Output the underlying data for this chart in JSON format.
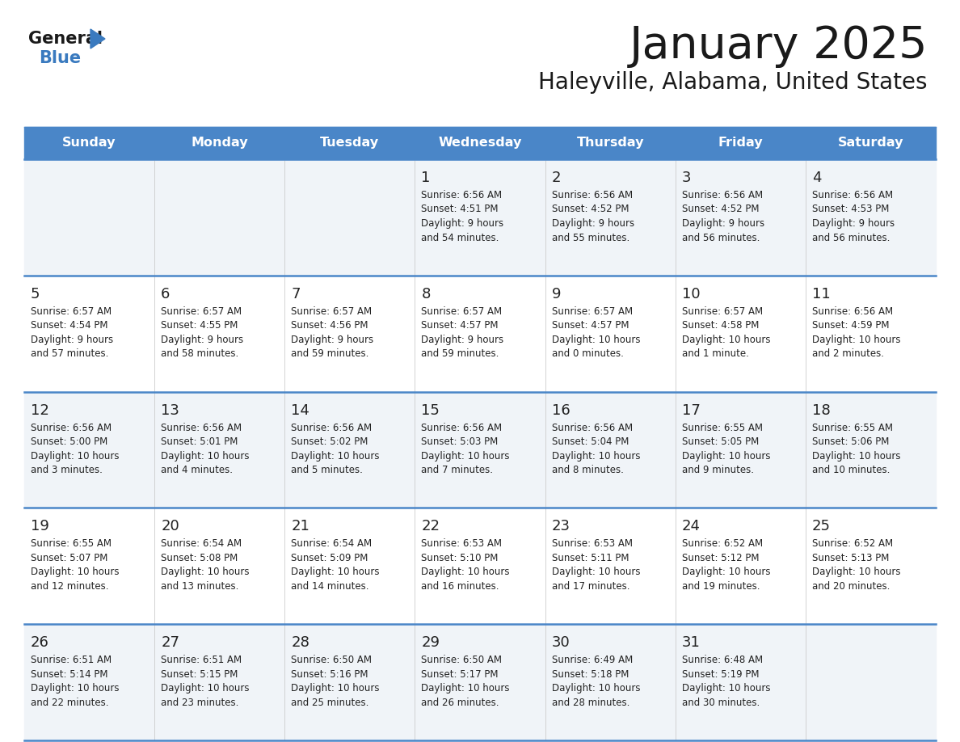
{
  "title": "January 2025",
  "subtitle": "Haleyville, Alabama, United States",
  "header_bg_color": "#4a86c8",
  "header_text_color": "#ffffff",
  "row_line_color": "#4a86c8",
  "text_color": "#222222",
  "days_of_week": [
    "Sunday",
    "Monday",
    "Tuesday",
    "Wednesday",
    "Thursday",
    "Friday",
    "Saturday"
  ],
  "calendar_data": [
    [
      {
        "day": null,
        "info": null
      },
      {
        "day": null,
        "info": null
      },
      {
        "day": null,
        "info": null
      },
      {
        "day": 1,
        "info": "Sunrise: 6:56 AM\nSunset: 4:51 PM\nDaylight: 9 hours\nand 54 minutes."
      },
      {
        "day": 2,
        "info": "Sunrise: 6:56 AM\nSunset: 4:52 PM\nDaylight: 9 hours\nand 55 minutes."
      },
      {
        "day": 3,
        "info": "Sunrise: 6:56 AM\nSunset: 4:52 PM\nDaylight: 9 hours\nand 56 minutes."
      },
      {
        "day": 4,
        "info": "Sunrise: 6:56 AM\nSunset: 4:53 PM\nDaylight: 9 hours\nand 56 minutes."
      }
    ],
    [
      {
        "day": 5,
        "info": "Sunrise: 6:57 AM\nSunset: 4:54 PM\nDaylight: 9 hours\nand 57 minutes."
      },
      {
        "day": 6,
        "info": "Sunrise: 6:57 AM\nSunset: 4:55 PM\nDaylight: 9 hours\nand 58 minutes."
      },
      {
        "day": 7,
        "info": "Sunrise: 6:57 AM\nSunset: 4:56 PM\nDaylight: 9 hours\nand 59 minutes."
      },
      {
        "day": 8,
        "info": "Sunrise: 6:57 AM\nSunset: 4:57 PM\nDaylight: 9 hours\nand 59 minutes."
      },
      {
        "day": 9,
        "info": "Sunrise: 6:57 AM\nSunset: 4:57 PM\nDaylight: 10 hours\nand 0 minutes."
      },
      {
        "day": 10,
        "info": "Sunrise: 6:57 AM\nSunset: 4:58 PM\nDaylight: 10 hours\nand 1 minute."
      },
      {
        "day": 11,
        "info": "Sunrise: 6:56 AM\nSunset: 4:59 PM\nDaylight: 10 hours\nand 2 minutes."
      }
    ],
    [
      {
        "day": 12,
        "info": "Sunrise: 6:56 AM\nSunset: 5:00 PM\nDaylight: 10 hours\nand 3 minutes."
      },
      {
        "day": 13,
        "info": "Sunrise: 6:56 AM\nSunset: 5:01 PM\nDaylight: 10 hours\nand 4 minutes."
      },
      {
        "day": 14,
        "info": "Sunrise: 6:56 AM\nSunset: 5:02 PM\nDaylight: 10 hours\nand 5 minutes."
      },
      {
        "day": 15,
        "info": "Sunrise: 6:56 AM\nSunset: 5:03 PM\nDaylight: 10 hours\nand 7 minutes."
      },
      {
        "day": 16,
        "info": "Sunrise: 6:56 AM\nSunset: 5:04 PM\nDaylight: 10 hours\nand 8 minutes."
      },
      {
        "day": 17,
        "info": "Sunrise: 6:55 AM\nSunset: 5:05 PM\nDaylight: 10 hours\nand 9 minutes."
      },
      {
        "day": 18,
        "info": "Sunrise: 6:55 AM\nSunset: 5:06 PM\nDaylight: 10 hours\nand 10 minutes."
      }
    ],
    [
      {
        "day": 19,
        "info": "Sunrise: 6:55 AM\nSunset: 5:07 PM\nDaylight: 10 hours\nand 12 minutes."
      },
      {
        "day": 20,
        "info": "Sunrise: 6:54 AM\nSunset: 5:08 PM\nDaylight: 10 hours\nand 13 minutes."
      },
      {
        "day": 21,
        "info": "Sunrise: 6:54 AM\nSunset: 5:09 PM\nDaylight: 10 hours\nand 14 minutes."
      },
      {
        "day": 22,
        "info": "Sunrise: 6:53 AM\nSunset: 5:10 PM\nDaylight: 10 hours\nand 16 minutes."
      },
      {
        "day": 23,
        "info": "Sunrise: 6:53 AM\nSunset: 5:11 PM\nDaylight: 10 hours\nand 17 minutes."
      },
      {
        "day": 24,
        "info": "Sunrise: 6:52 AM\nSunset: 5:12 PM\nDaylight: 10 hours\nand 19 minutes."
      },
      {
        "day": 25,
        "info": "Sunrise: 6:52 AM\nSunset: 5:13 PM\nDaylight: 10 hours\nand 20 minutes."
      }
    ],
    [
      {
        "day": 26,
        "info": "Sunrise: 6:51 AM\nSunset: 5:14 PM\nDaylight: 10 hours\nand 22 minutes."
      },
      {
        "day": 27,
        "info": "Sunrise: 6:51 AM\nSunset: 5:15 PM\nDaylight: 10 hours\nand 23 minutes."
      },
      {
        "day": 28,
        "info": "Sunrise: 6:50 AM\nSunset: 5:16 PM\nDaylight: 10 hours\nand 25 minutes."
      },
      {
        "day": 29,
        "info": "Sunrise: 6:50 AM\nSunset: 5:17 PM\nDaylight: 10 hours\nand 26 minutes."
      },
      {
        "day": 30,
        "info": "Sunrise: 6:49 AM\nSunset: 5:18 PM\nDaylight: 10 hours\nand 28 minutes."
      },
      {
        "day": 31,
        "info": "Sunrise: 6:48 AM\nSunset: 5:19 PM\nDaylight: 10 hours\nand 30 minutes."
      },
      {
        "day": null,
        "info": null
      }
    ]
  ],
  "logo_triangle_color": "#3a7abf",
  "fig_width": 11.88,
  "fig_height": 9.18,
  "dpi": 100
}
